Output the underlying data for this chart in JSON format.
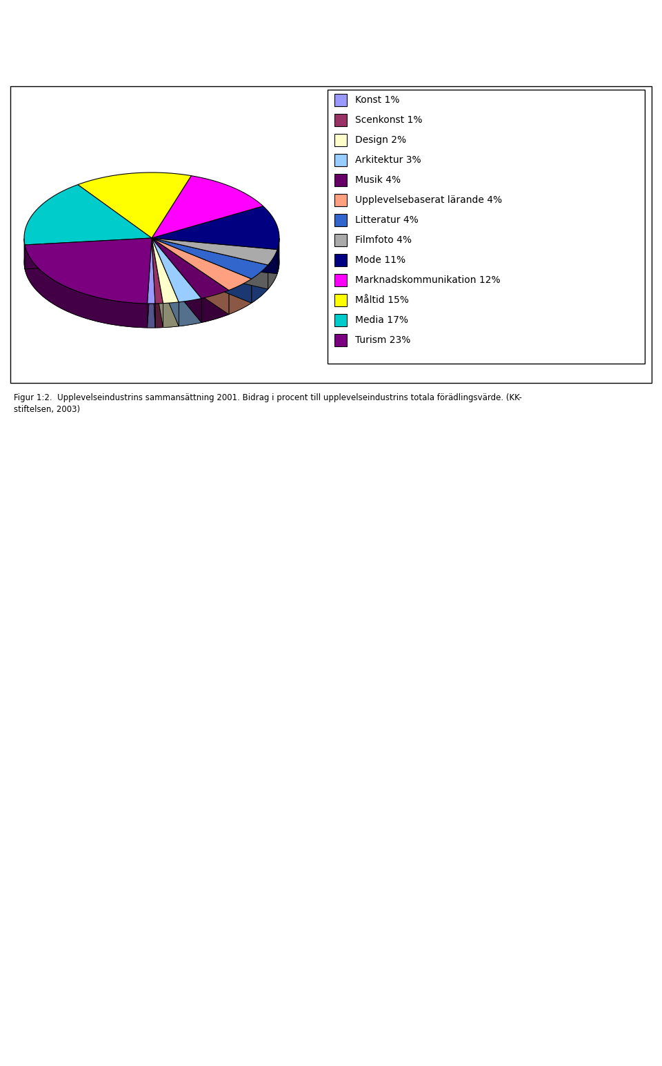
{
  "categories": [
    "Konst 1%",
    "Scenkonst 1%",
    "Design 2%",
    "Arkitektur 3%",
    "Musik 4%",
    "Upplevelsebaserat lärande 4%",
    "Litteratur 4%",
    "Filmfoto 4%",
    "Mode 11%",
    "Marknadskommunikation 12%",
    "Måltid 15%",
    "Media 17%",
    "Turism 23%"
  ],
  "values": [
    1,
    1,
    2,
    3,
    4,
    4,
    4,
    4,
    11,
    12,
    15,
    17,
    23
  ],
  "colors": [
    "#9999FF",
    "#993366",
    "#FFFFCC",
    "#99CCFF",
    "#660066",
    "#FF9999",
    "#0066FF",
    "#C0C0C0",
    "#800080",
    "#993300",
    "#808040",
    "#FF00FF",
    "#000080"
  ],
  "legend_colors": [
    "#9999FF",
    "#993366",
    "#FFFFCC",
    "#99CCFF",
    "#660066",
    "#FF9999",
    "#0066FF",
    "#C0C0C0",
    "#000080",
    "#FF00FF",
    "#FFFF00",
    "#00FFFF",
    "#660066"
  ],
  "pie_colors": [
    "#9999FF",
    "#993366",
    "#FFFFCC",
    "#AADDFF",
    "#660066",
    "#FF9999",
    "#3366FF",
    "#AAAAAA",
    "#000080",
    "#FF00FF",
    "#FFFF00",
    "#00CCCC",
    "#660066"
  ],
  "background_color": "#FFFFFF",
  "figure_background": "#FFFFFF",
  "chart_area_background": "#FFFFFF",
  "border_color": "#000000",
  "font_family": "Arial",
  "font_size": 11
}
